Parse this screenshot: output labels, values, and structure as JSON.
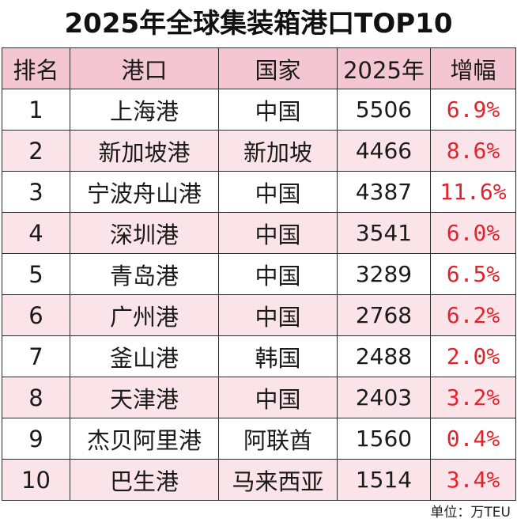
{
  "title": "2025年全球集装箱港口TOP10",
  "table": {
    "headers": [
      "排名",
      "港口",
      "国家",
      "2025年",
      "增幅"
    ],
    "rows": [
      {
        "rank": "1",
        "port": "上海港",
        "country": "中国",
        "teu": "5506",
        "growth": "6.9%"
      },
      {
        "rank": "2",
        "port": "新加坡港",
        "country": "新加坡",
        "teu": "4466",
        "growth": "8.6%"
      },
      {
        "rank": "3",
        "port": "宁波舟山港",
        "country": "中国",
        "teu": "4387",
        "growth": "11.6%"
      },
      {
        "rank": "4",
        "port": "深圳港",
        "country": "中国",
        "teu": "3541",
        "growth": "6.0%"
      },
      {
        "rank": "5",
        "port": "青岛港",
        "country": "中国",
        "teu": "3289",
        "growth": "6.5%"
      },
      {
        "rank": "6",
        "port": "广州港",
        "country": "中国",
        "teu": "2768",
        "growth": "6.2%"
      },
      {
        "rank": "7",
        "port": "釜山港",
        "country": "韩国",
        "teu": "2488",
        "growth": "2.0%"
      },
      {
        "rank": "8",
        "port": "天津港",
        "country": "中国",
        "teu": "2403",
        "growth": "3.2%"
      },
      {
        "rank": "9",
        "port": "杰贝阿里港",
        "country": "阿联酋",
        "teu": "1560",
        "growth": "0.4%"
      },
      {
        "rank": "10",
        "port": "巴生港",
        "country": "马来西亚",
        "teu": "1514",
        "growth": "3.4%"
      }
    ]
  },
  "unit": "单位：万TEU",
  "colors": {
    "header_bg": "#f3c6d2",
    "stripe_bg": "#fbe3ea",
    "growth_text": "#e0242e"
  }
}
